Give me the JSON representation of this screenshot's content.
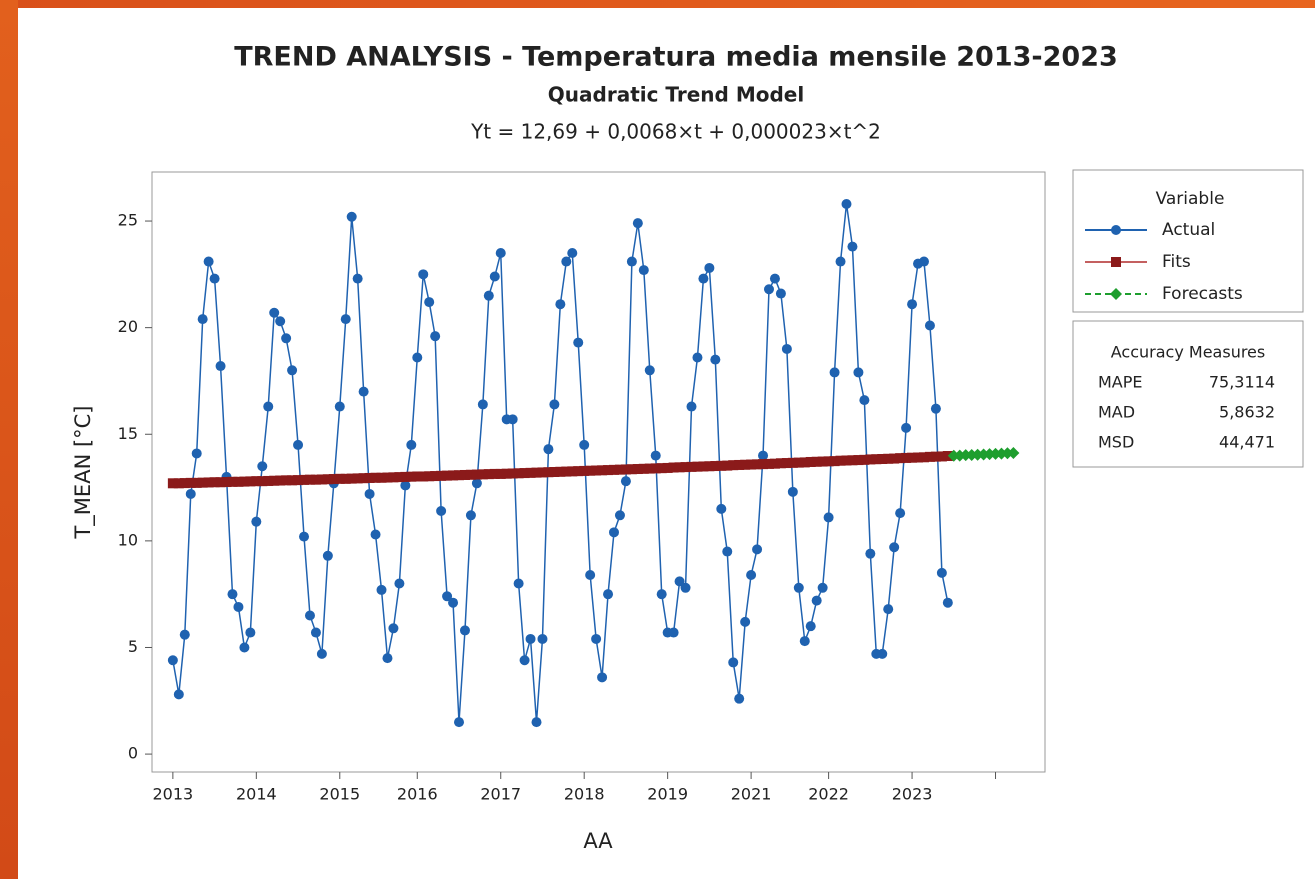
{
  "chart_data": {
    "type": "line",
    "title": "TREND ANALYSIS - Temperatura media mensile 2013-2023",
    "subtitle": "Quadratic Trend Model",
    "equation": "Yt = 12,69 + 0,0068×t + 0,000023×t^2",
    "x_label": "AA",
    "y_label": "T_MEAN [°C]",
    "x": [
      1,
      2,
      3,
      4,
      5,
      6,
      7,
      8,
      9,
      10,
      11,
      12,
      13,
      14,
      15,
      16,
      17,
      18,
      19,
      20,
      21,
      22,
      23,
      24,
      25,
      26,
      27,
      28,
      29,
      30,
      31,
      32,
      33,
      34,
      35,
      36,
      37,
      38,
      39,
      40,
      41,
      42,
      43,
      44,
      45,
      46,
      47,
      48,
      49,
      50,
      51,
      52,
      53,
      54,
      55,
      56,
      57,
      58,
      59,
      60,
      61,
      62,
      63,
      64,
      65,
      66,
      67,
      68,
      69,
      70,
      71,
      72,
      73,
      74,
      75,
      76,
      77,
      78,
      79,
      80,
      81,
      82,
      83,
      84,
      85,
      86,
      87,
      88,
      89,
      90,
      91,
      92,
      93,
      94,
      95,
      96,
      97,
      98,
      99,
      100,
      101,
      102,
      103,
      104,
      105,
      106,
      107,
      108,
      109,
      110,
      111,
      112,
      113,
      114,
      115,
      116,
      117,
      118,
      119,
      120,
      121,
      122,
      123,
      124,
      125,
      126,
      127,
      128,
      129,
      130,
      131
    ],
    "series": [
      {
        "name": "Actual",
        "color": "#1f62b0",
        "marker": "circle",
        "dash": false,
        "values": [
          4.4,
          2.8,
          5.6,
          12.2,
          14.1,
          20.4,
          23.1,
          22.3,
          18.2,
          13.0,
          7.5,
          6.9,
          5.0,
          5.7,
          10.9,
          13.5,
          16.3,
          20.7,
          20.3,
          19.5,
          18.0,
          14.5,
          10.2,
          6.5,
          5.7,
          4.7,
          9.3,
          12.7,
          16.3,
          20.4,
          25.2,
          22.3,
          17.0,
          12.2,
          10.3,
          7.7,
          4.5,
          5.9,
          8.0,
          12.6,
          14.5,
          18.6,
          22.5,
          21.2,
          19.6,
          11.4,
          7.4,
          7.1,
          1.5,
          5.8,
          11.2,
          12.7,
          16.4,
          21.5,
          22.4,
          23.5,
          15.7,
          15.7,
          8.0,
          4.4,
          5.4,
          1.5,
          5.4,
          14.3,
          16.4,
          21.1,
          23.1,
          23.5,
          19.3,
          14.5,
          8.4,
          5.4,
          3.6,
          7.5,
          10.4,
          11.2,
          12.8,
          23.1,
          24.9,
          22.7,
          18.0,
          14.0,
          7.5,
          5.7,
          5.7,
          8.1,
          7.8,
          16.3,
          18.6,
          22.3,
          22.8,
          18.5,
          11.5,
          9.5,
          4.3,
          2.6,
          6.2,
          8.4,
          9.6,
          14.0,
          21.8,
          22.3,
          21.6,
          19.0,
          12.3,
          7.8,
          5.3,
          6.0,
          7.2,
          7.8,
          11.1,
          17.9,
          23.1,
          25.8,
          23.8,
          17.9,
          16.6,
          9.4,
          4.7,
          4.7,
          6.8,
          9.7,
          11.3,
          15.3,
          21.1,
          23.0,
          23.1,
          20.1,
          16.2,
          8.5,
          7.1
        ]
      },
      {
        "name": "Fits",
        "color": "#8b1a1a",
        "line_color": "#c46060",
        "marker": "square",
        "dash": false,
        "values": [
          12.7,
          12.7,
          12.71,
          12.72,
          12.72,
          12.73,
          12.74,
          12.75,
          12.75,
          12.76,
          12.77,
          12.77,
          12.78,
          12.79,
          12.8,
          12.8,
          12.81,
          12.82,
          12.83,
          12.84,
          12.84,
          12.85,
          12.86,
          12.87,
          12.87,
          12.88,
          12.89,
          12.9,
          12.91,
          12.91,
          12.92,
          12.93,
          12.94,
          12.95,
          12.96,
          12.96,
          12.97,
          12.98,
          12.99,
          13.0,
          13.01,
          13.02,
          13.02,
          13.03,
          13.04,
          13.05,
          13.06,
          13.07,
          13.08,
          13.09,
          13.1,
          13.11,
          13.12,
          13.13,
          13.14,
          13.14,
          13.15,
          13.16,
          13.17,
          13.18,
          13.19,
          13.2,
          13.21,
          13.22,
          13.23,
          13.24,
          13.25,
          13.26,
          13.27,
          13.28,
          13.29,
          13.3,
          13.31,
          13.32,
          13.33,
          13.34,
          13.35,
          13.36,
          13.37,
          13.38,
          13.39,
          13.4,
          13.41,
          13.42,
          13.44,
          13.45,
          13.46,
          13.47,
          13.48,
          13.49,
          13.5,
          13.51,
          13.52,
          13.53,
          13.55,
          13.56,
          13.57,
          13.58,
          13.59,
          13.6,
          13.61,
          13.62,
          13.64,
          13.65,
          13.66,
          13.67,
          13.68,
          13.7,
          13.71,
          13.72,
          13.73,
          13.74,
          13.76,
          13.77,
          13.78,
          13.79,
          13.8,
          13.82,
          13.83,
          13.84,
          13.85,
          13.86,
          13.88,
          13.89,
          13.9,
          13.91,
          13.92,
          13.94,
          13.95,
          13.96,
          13.98
        ]
      },
      {
        "name": "Forecasts",
        "color": "#1e9e2e",
        "marker": "diamond",
        "dash": true,
        "x": [
          132,
          133,
          134,
          135,
          136,
          137,
          138,
          139,
          140,
          141,
          142
        ],
        "values": [
          13.99,
          14.0,
          14.02,
          14.03,
          14.04,
          14.05,
          14.07,
          14.08,
          14.09,
          14.11,
          14.12
        ]
      }
    ],
    "xlim": [
      -2.5,
      147.3
    ],
    "xticks": [
      {
        "value": 1,
        "label": "2013"
      },
      {
        "value": 15,
        "label": "2014"
      },
      {
        "value": 29,
        "label": "2015"
      },
      {
        "value": 42,
        "label": "2016"
      },
      {
        "value": 56,
        "label": "2017"
      },
      {
        "value": 70,
        "label": "2018"
      },
      {
        "value": 84,
        "label": "2019"
      },
      {
        "value": 98,
        "label": "2021"
      },
      {
        "value": 111,
        "label": "2022"
      },
      {
        "value": 125,
        "label": "2023"
      },
      {
        "value": 139,
        "label": null
      }
    ],
    "ylim": [
      -0.84,
      27.3
    ],
    "yticks": [
      0,
      5,
      10,
      15,
      20,
      25
    ],
    "grid": false,
    "legend_title": "Variable",
    "legend_position": "right",
    "accuracy": {
      "title": "Accuracy Measures",
      "rows": [
        {
          "name": "MAPE",
          "value": "75,3114"
        },
        {
          "name": "MAD",
          "value": "5,8632"
        },
        {
          "name": "MSD",
          "value": "44,471"
        }
      ]
    }
  }
}
